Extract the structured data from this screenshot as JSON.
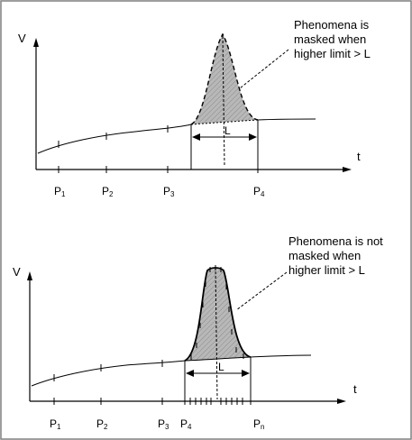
{
  "top_panel": {
    "y_axis_label": "V",
    "x_axis_label": "t",
    "annotation_lines": [
      "Phenomena is",
      "masked when",
      "higher limit > L"
    ],
    "width_label": "L",
    "points": [
      {
        "base": "P",
        "sub": "1"
      },
      {
        "base": "P",
        "sub": "2"
      },
      {
        "base": "P",
        "sub": "3"
      },
      {
        "base": "P",
        "sub": "4"
      }
    ]
  },
  "bottom_panel": {
    "y_axis_label": "V",
    "x_axis_label": "t",
    "annotation_lines": [
      "Phenomena is not",
      "masked when",
      "higher limit > L"
    ],
    "width_label": "L",
    "points": [
      {
        "base": "P",
        "sub": "1"
      },
      {
        "base": "P",
        "sub": "2"
      },
      {
        "base": "P",
        "sub": "3"
      },
      {
        "base": "P",
        "sub": "4"
      },
      {
        "base": "P",
        "sub": "n"
      }
    ]
  },
  "colors": {
    "line": "#000000",
    "peak_fill": "#b8b8b8",
    "border": "#7f7f7f"
  }
}
